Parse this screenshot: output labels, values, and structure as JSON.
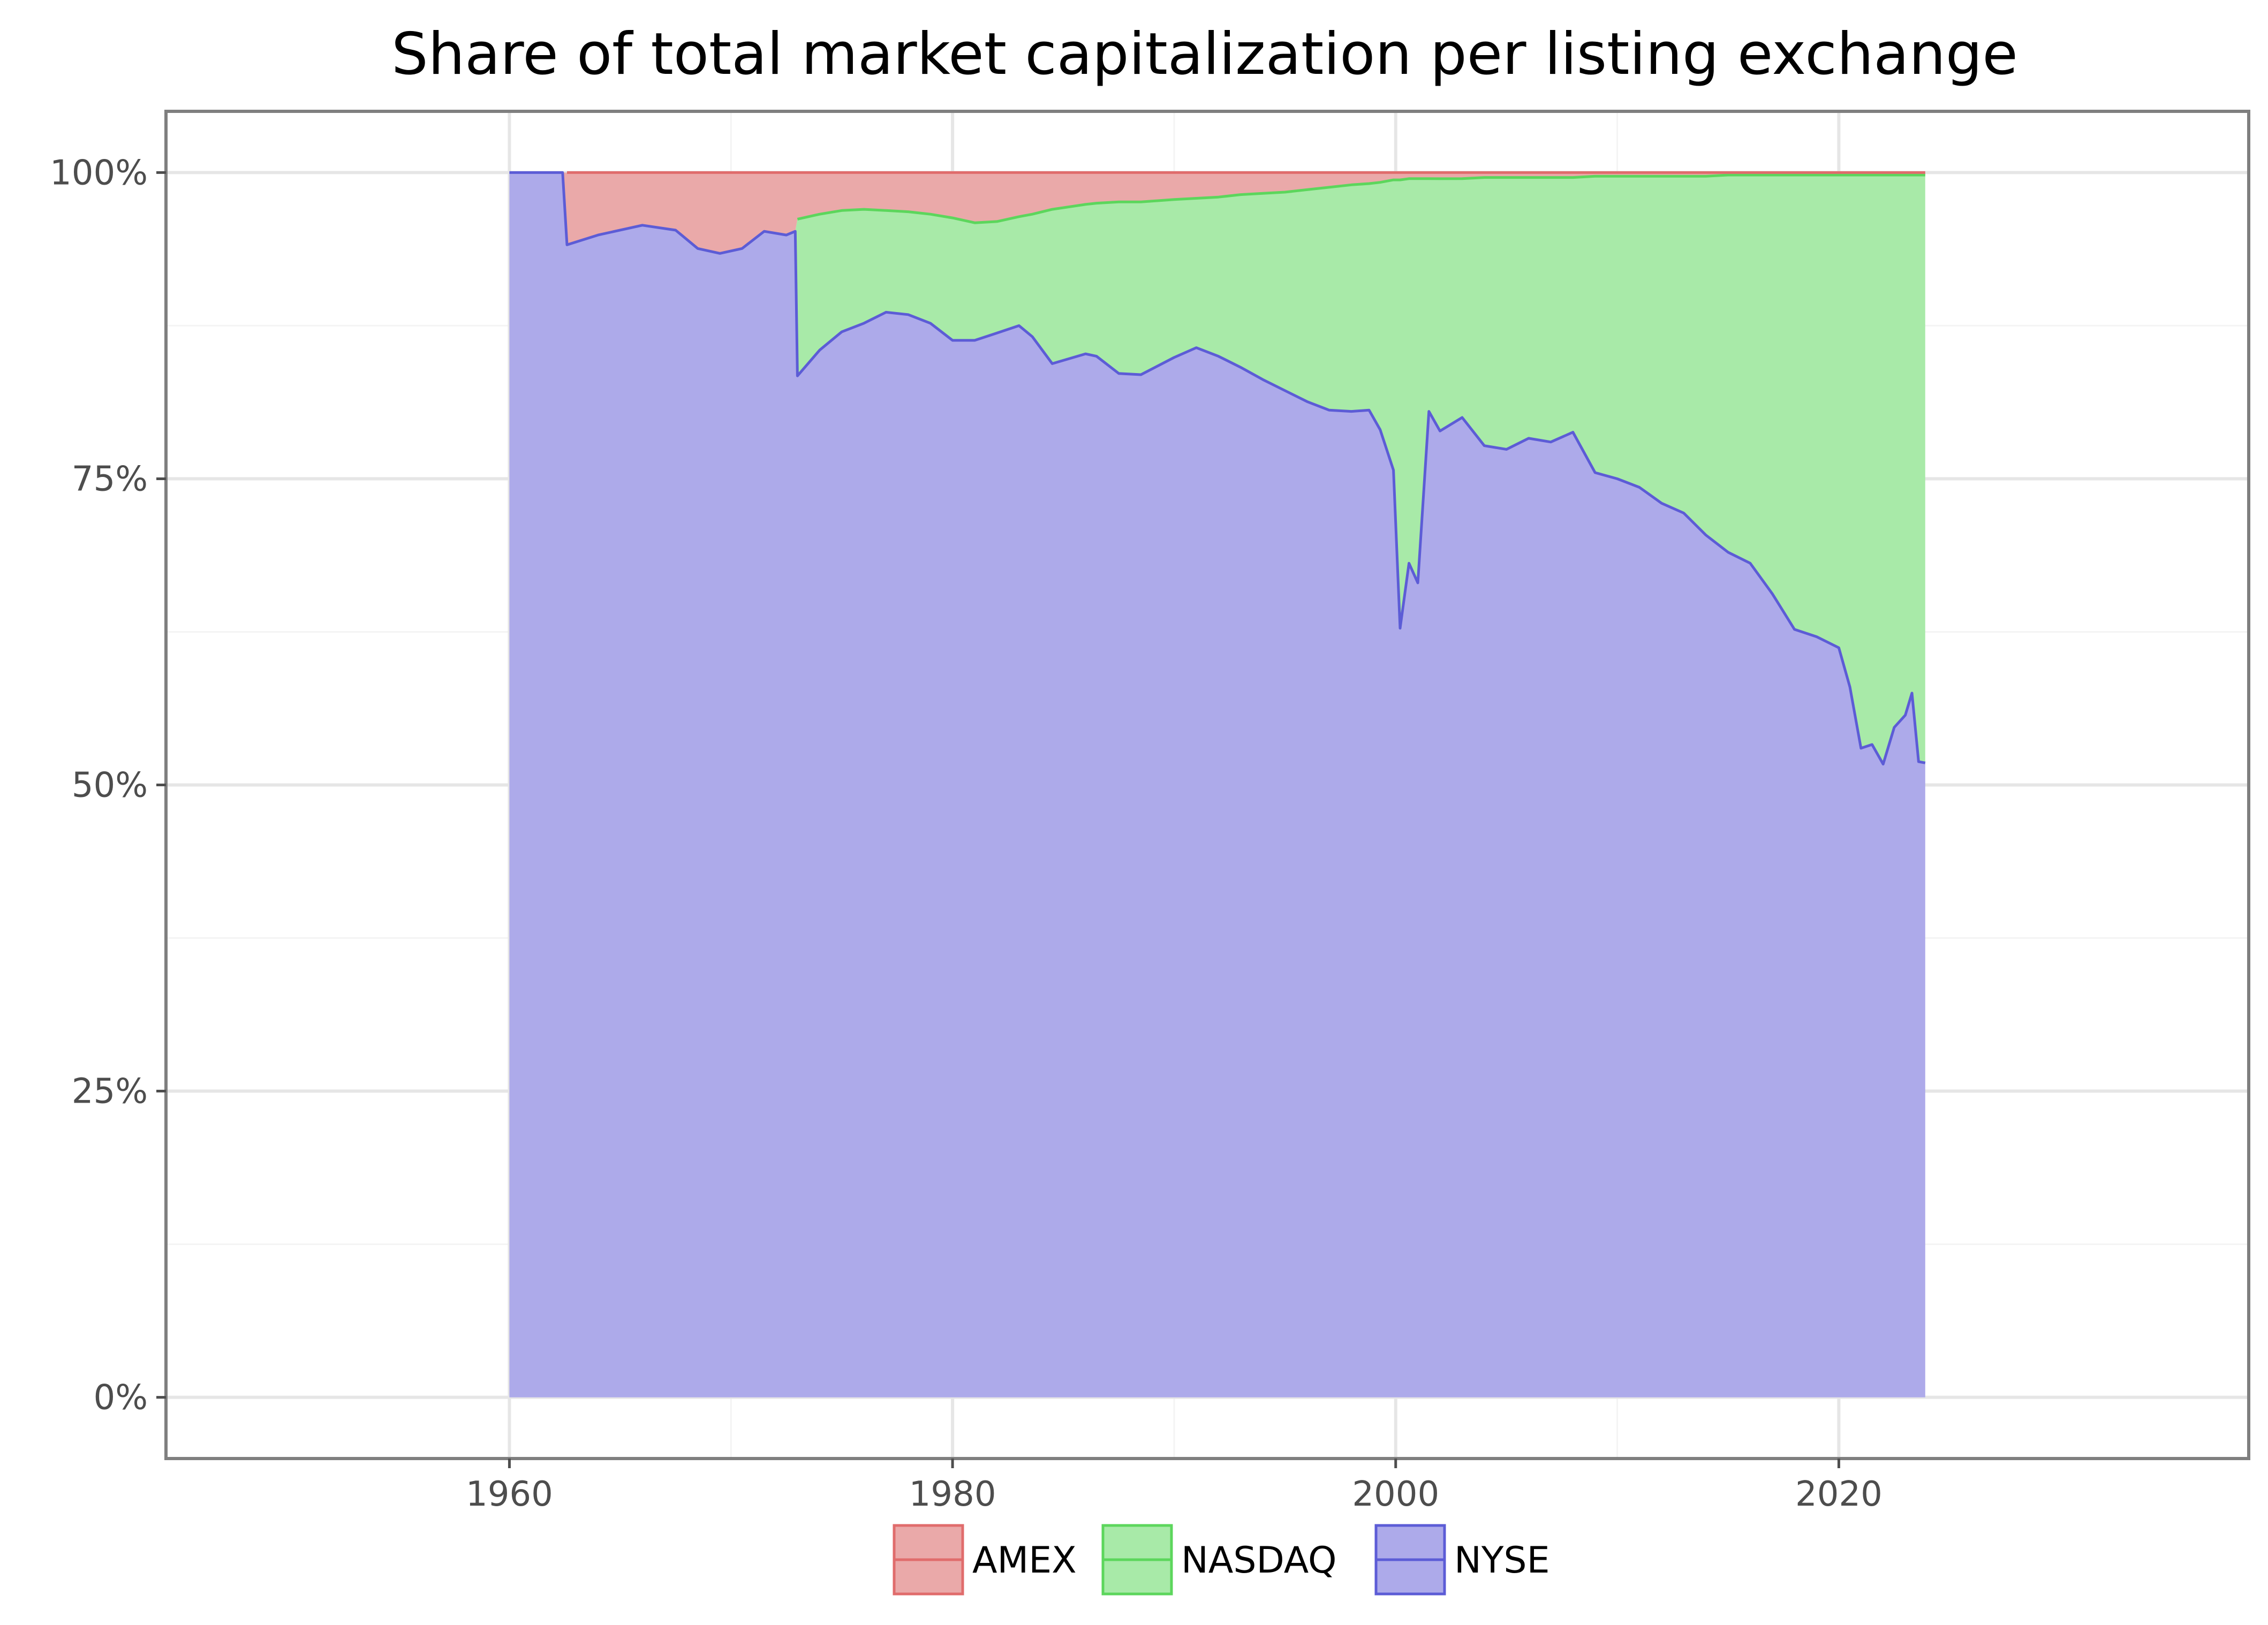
{
  "chart_data": {
    "type": "area",
    "title": "Share of total market capitalization per listing exchange",
    "xlabel": "",
    "ylabel": "",
    "stacked": true,
    "xlim": [
      1944.5,
      2038.5
    ],
    "ylim": [
      -0.05,
      1.05
    ],
    "x_ticks": [
      1960,
      1980,
      2000,
      2020
    ],
    "x_tick_labels": [
      "1960",
      "1980",
      "2000",
      "2020"
    ],
    "y_ticks": [
      0,
      0.25,
      0.5,
      0.75,
      1.0
    ],
    "y_tick_labels": [
      "0%",
      "25%",
      "50%",
      "75%",
      "100%"
    ],
    "grid": true,
    "legend": "bottom",
    "x": [
      1960.0,
      1962.4,
      1962.6,
      1964.0,
      1966.0,
      1967.5,
      1968.5,
      1969.5,
      1970.5,
      1971.5,
      1972.5,
      1972.9,
      1973.0,
      1974.0,
      1975.0,
      1976.0,
      1977.0,
      1978.0,
      1979.0,
      1980.0,
      1981.0,
      1982.0,
      1983.0,
      1983.6,
      1984.5,
      1986.0,
      1986.5,
      1987.5,
      1988.5,
      1990.0,
      1991.0,
      1992.0,
      1993.0,
      1994.0,
      1995.0,
      1996.0,
      1997.0,
      1998.0,
      1998.8,
      1999.3,
      1999.9,
      2000.2,
      2000.6,
      2001.0,
      2001.5,
      2002.0,
      2003.0,
      2004.0,
      2005.0,
      2006.0,
      2007.0,
      2008.0,
      2009.0,
      2010.0,
      2011.0,
      2012.0,
      2013.0,
      2014.0,
      2015.0,
      2016.0,
      2017.0,
      2018.0,
      2019.0,
      2020.0,
      2020.5,
      2021.0,
      2021.5,
      2022.0,
      2022.5,
      2023.0,
      2023.3,
      2023.6,
      2023.9
    ],
    "series": [
      {
        "name": "AMEX",
        "color": "#e06c6c",
        "fill": "#eaa9a9",
        "values": [
          0.0,
          0.0,
          0.059,
          0.051,
          0.043,
          0.047,
          0.062,
          0.066,
          0.062,
          0.048,
          0.051,
          0.048,
          0.038,
          0.034,
          0.031,
          0.03,
          0.031,
          0.032,
          0.034,
          0.037,
          0.041,
          0.04,
          0.036,
          0.034,
          0.03,
          0.026,
          0.025,
          0.024,
          0.024,
          0.022,
          0.021,
          0.02,
          0.018,
          0.017,
          0.016,
          0.014,
          0.012,
          0.01,
          0.009,
          0.008,
          0.006,
          0.006,
          0.005,
          0.005,
          0.005,
          0.005,
          0.005,
          0.004,
          0.004,
          0.004,
          0.004,
          0.004,
          0.003,
          0.003,
          0.003,
          0.003,
          0.003,
          0.003,
          0.002,
          0.002,
          0.002,
          0.002,
          0.002,
          0.002,
          0.002,
          0.002,
          0.002,
          0.002,
          0.002,
          0.002,
          0.002,
          0.002,
          0.002
        ]
      },
      {
        "name": "NASDAQ",
        "color": "#5cd65c",
        "fill": "#a8eaa8",
        "values": [
          0.0,
          0.0,
          0.0,
          0.0,
          0.0,
          0.0,
          0.0,
          0.0,
          0.0,
          0.0,
          0.0,
          0.0,
          0.128,
          0.111,
          0.099,
          0.093,
          0.083,
          0.084,
          0.089,
          0.1,
          0.096,
          0.091,
          0.089,
          0.1,
          0.126,
          0.122,
          0.125,
          0.14,
          0.141,
          0.129,
          0.122,
          0.13,
          0.141,
          0.152,
          0.162,
          0.173,
          0.182,
          0.185,
          0.185,
          0.202,
          0.237,
          0.366,
          0.314,
          0.33,
          0.19,
          0.206,
          0.195,
          0.219,
          0.222,
          0.213,
          0.216,
          0.208,
          0.242,
          0.247,
          0.254,
          0.267,
          0.275,
          0.293,
          0.308,
          0.317,
          0.342,
          0.371,
          0.377,
          0.386,
          0.418,
          0.468,
          0.465,
          0.481,
          0.451,
          0.441,
          0.423,
          0.479,
          0.48
        ]
      },
      {
        "name": "NYSE",
        "color": "#5c5cd6",
        "fill": "#adaaea",
        "values": [
          1.0,
          1.0,
          0.941,
          0.949,
          0.957,
          0.953,
          0.938,
          0.934,
          0.938,
          0.952,
          0.949,
          0.952,
          0.834,
          0.855,
          0.87,
          0.877,
          0.886,
          0.884,
          0.877,
          0.863,
          0.863,
          0.869,
          0.875,
          0.866,
          0.844,
          0.852,
          0.85,
          0.836,
          0.835,
          0.849,
          0.857,
          0.85,
          0.841,
          0.831,
          0.822,
          0.813,
          0.806,
          0.805,
          0.806,
          0.79,
          0.757,
          0.628,
          0.681,
          0.665,
          0.805,
          0.789,
          0.8,
          0.777,
          0.774,
          0.783,
          0.78,
          0.788,
          0.755,
          0.75,
          0.743,
          0.73,
          0.722,
          0.704,
          0.69,
          0.681,
          0.656,
          0.627,
          0.621,
          0.612,
          0.58,
          0.53,
          0.533,
          0.517,
          0.547,
          0.557,
          0.575,
          0.519,
          0.518
        ]
      }
    ]
  }
}
